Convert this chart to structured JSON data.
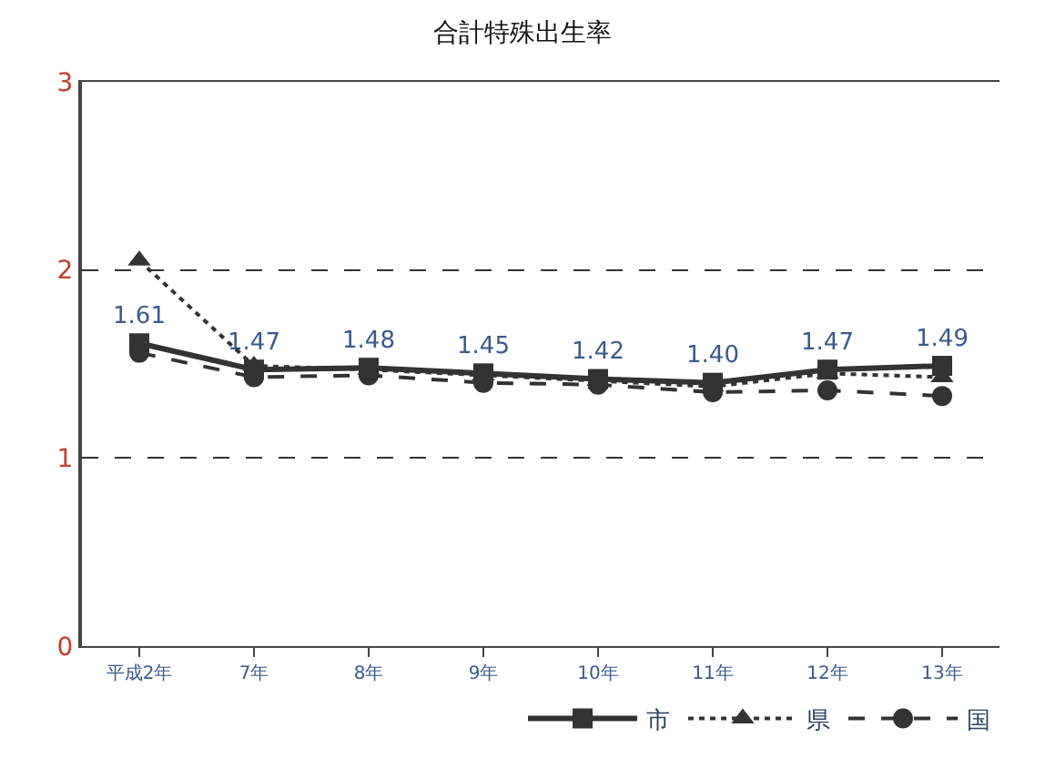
{
  "chart_data": {
    "type": "line",
    "title": "合計特殊出生率",
    "categories": [
      "平成2年",
      "7年",
      "8年",
      "9年",
      "10年",
      "11年",
      "12年",
      "13年"
    ],
    "series": [
      {
        "name": "市",
        "color": "#333333",
        "marker": "square",
        "line_style": "solid",
        "values": [
          1.61,
          1.47,
          1.48,
          1.45,
          1.42,
          1.4,
          1.47,
          1.49
        ],
        "value_labels": [
          "1.61",
          "1.47",
          "1.48",
          "1.45",
          "1.42",
          "1.40",
          "1.47",
          "1.49"
        ]
      },
      {
        "name": "県",
        "color": "#333333",
        "marker": "triangle",
        "line_style": "dotted",
        "values": [
          2.05,
          1.49,
          1.47,
          1.44,
          1.41,
          1.38,
          1.45,
          1.43
        ]
      },
      {
        "name": "国",
        "color": "#333333",
        "marker": "circle",
        "line_style": "dashed",
        "values": [
          1.56,
          1.43,
          1.44,
          1.4,
          1.39,
          1.35,
          1.36,
          1.33
        ]
      }
    ],
    "ylim": [
      0,
      3
    ],
    "yticks": [
      0,
      1,
      2,
      3
    ],
    "grid": "y",
    "legend": "bottom"
  }
}
